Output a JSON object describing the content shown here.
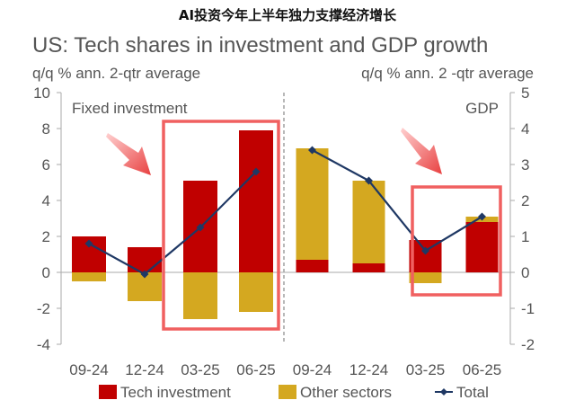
{
  "banner": "AI投资今年上半年独力支撑经济增长",
  "chart_data": {
    "title": "US: Tech shares in investment and GDP growth",
    "type": "bar",
    "stacked": true,
    "legend": {
      "position": "bottom",
      "entries": [
        "Tech investment",
        "Other sectors",
        "Total"
      ]
    },
    "colors": {
      "tech": "#c00000",
      "other": "#d4a820",
      "total": "#1f3864",
      "highlight": "#f06060"
    },
    "panels": [
      {
        "label": "Fixed investment",
        "axis_title": "q/q % ann. 2-qtr average",
        "axis_side": "left",
        "ylim": [
          -4,
          10
        ],
        "yticks": [
          -4,
          -2,
          0,
          2,
          4,
          6,
          8,
          10
        ],
        "categories": [
          "09-24",
          "12-24",
          "03-25",
          "06-25"
        ],
        "series": [
          {
            "name": "Tech investment",
            "type": "bar",
            "values": [
              2.0,
              1.4,
              5.1,
              7.9
            ]
          },
          {
            "name": "Other sectors",
            "type": "bar",
            "values": [
              -0.5,
              -1.6,
              -2.6,
              -2.2
            ]
          },
          {
            "name": "Total",
            "type": "line",
            "values": [
              1.6,
              -0.1,
              2.5,
              5.6
            ]
          }
        ],
        "highlight_categories": [
          "03-25",
          "06-25"
        ]
      },
      {
        "label": "GDP",
        "axis_title": "q/q % ann. 2 -qtr average",
        "axis_side": "right",
        "ylim": [
          -2,
          5
        ],
        "yticks": [
          -2,
          -1,
          0,
          1,
          2,
          3,
          4,
          5
        ],
        "categories": [
          "09-24",
          "12-24",
          "03-25",
          "06-25"
        ],
        "series": [
          {
            "name": "Tech investment",
            "type": "bar",
            "values": [
              0.35,
              0.25,
              0.9,
              1.4
            ]
          },
          {
            "name": "Other sectors",
            "type": "bar",
            "values": [
              3.1,
              2.3,
              -0.3,
              0.15
            ]
          },
          {
            "name": "Total",
            "type": "line",
            "values": [
              3.4,
              2.55,
              0.6,
              1.55
            ]
          }
        ],
        "highlight_categories": [
          "03-25",
          "06-25"
        ]
      }
    ],
    "annotations": [
      "red arrow pointing to highlighted 03-25 and 06-25 bars (Fixed investment)",
      "red arrow pointing to highlighted 03-25 and 06-25 bars (GDP)"
    ]
  }
}
